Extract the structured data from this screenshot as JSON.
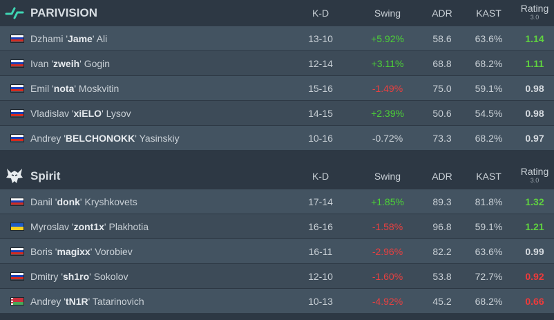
{
  "teams": [
    {
      "name": "PARIVISION",
      "logo_icon": "parivision-logo-icon",
      "headers": {
        "kd": "K-D",
        "swing": "Swing",
        "adr": "ADR",
        "kast": "KAST",
        "rating": "Rating",
        "rating_version": "3.0"
      },
      "players": [
        {
          "flag": "ru",
          "first": "Dzhami",
          "nick": "Jame",
          "last": "Ali",
          "kd": "13-10",
          "swing": "+5.92%",
          "swing_tone": "pos",
          "adr": "58.6",
          "kast": "63.6%",
          "rating": "1.14",
          "rating_tone": "good"
        },
        {
          "flag": "ru",
          "first": "Ivan",
          "nick": "zweih",
          "last": "Gogin",
          "kd": "12-14",
          "swing": "+3.11%",
          "swing_tone": "pos",
          "adr": "68.8",
          "kast": "68.2%",
          "rating": "1.11",
          "rating_tone": "good"
        },
        {
          "flag": "ru",
          "first": "Emil",
          "nick": "nota",
          "last": "Moskvitin",
          "kd": "15-16",
          "swing": "-1.49%",
          "swing_tone": "neg",
          "adr": "75.0",
          "kast": "59.1%",
          "rating": "0.98",
          "rating_tone": "mid"
        },
        {
          "flag": "ru",
          "first": "Vladislav",
          "nick": "xiELO",
          "last": "Lysov",
          "kd": "14-15",
          "swing": "+2.39%",
          "swing_tone": "pos",
          "adr": "50.6",
          "kast": "54.5%",
          "rating": "0.98",
          "rating_tone": "mid"
        },
        {
          "flag": "ru",
          "first": "Andrey",
          "nick": "BELCHONOKK",
          "last": "Yasinskiy",
          "kd": "10-16",
          "swing": "-0.72%",
          "swing_tone": "neu",
          "adr": "73.3",
          "kast": "68.2%",
          "rating": "0.97",
          "rating_tone": "mid"
        }
      ]
    },
    {
      "name": "Spirit",
      "logo_icon": "spirit-wolf-logo-icon",
      "headers": {
        "kd": "K-D",
        "swing": "Swing",
        "adr": "ADR",
        "kast": "KAST",
        "rating": "Rating",
        "rating_version": "3.0"
      },
      "players": [
        {
          "flag": "ru",
          "first": "Danil",
          "nick": "donk",
          "last": "Kryshkovets",
          "kd": "17-14",
          "swing": "+1.85%",
          "swing_tone": "pos",
          "adr": "89.3",
          "kast": "81.8%",
          "rating": "1.32",
          "rating_tone": "good"
        },
        {
          "flag": "ua",
          "first": "Myroslav",
          "nick": "zont1x",
          "last": "Plakhotia",
          "kd": "16-16",
          "swing": "-1.58%",
          "swing_tone": "neg",
          "adr": "96.8",
          "kast": "59.1%",
          "rating": "1.21",
          "rating_tone": "good"
        },
        {
          "flag": "ru",
          "first": "Boris",
          "nick": "magixx",
          "last": "Vorobiev",
          "kd": "16-11",
          "swing": "-2.96%",
          "swing_tone": "neg",
          "adr": "82.2",
          "kast": "63.6%",
          "rating": "0.99",
          "rating_tone": "mid"
        },
        {
          "flag": "ru",
          "first": "Dmitry",
          "nick": "sh1ro",
          "last": "Sokolov",
          "kd": "12-10",
          "swing": "-1.60%",
          "swing_tone": "neg",
          "adr": "53.8",
          "kast": "72.7%",
          "rating": "0.92",
          "rating_tone": "bad"
        },
        {
          "flag": "by",
          "first": "Andrey",
          "nick": "tN1R",
          "last": "Tatarinovich",
          "kd": "10-13",
          "swing": "-4.92%",
          "swing_tone": "neg",
          "adr": "45.2",
          "kast": "68.2%",
          "rating": "0.66",
          "rating_tone": "bad"
        }
      ]
    }
  ]
}
